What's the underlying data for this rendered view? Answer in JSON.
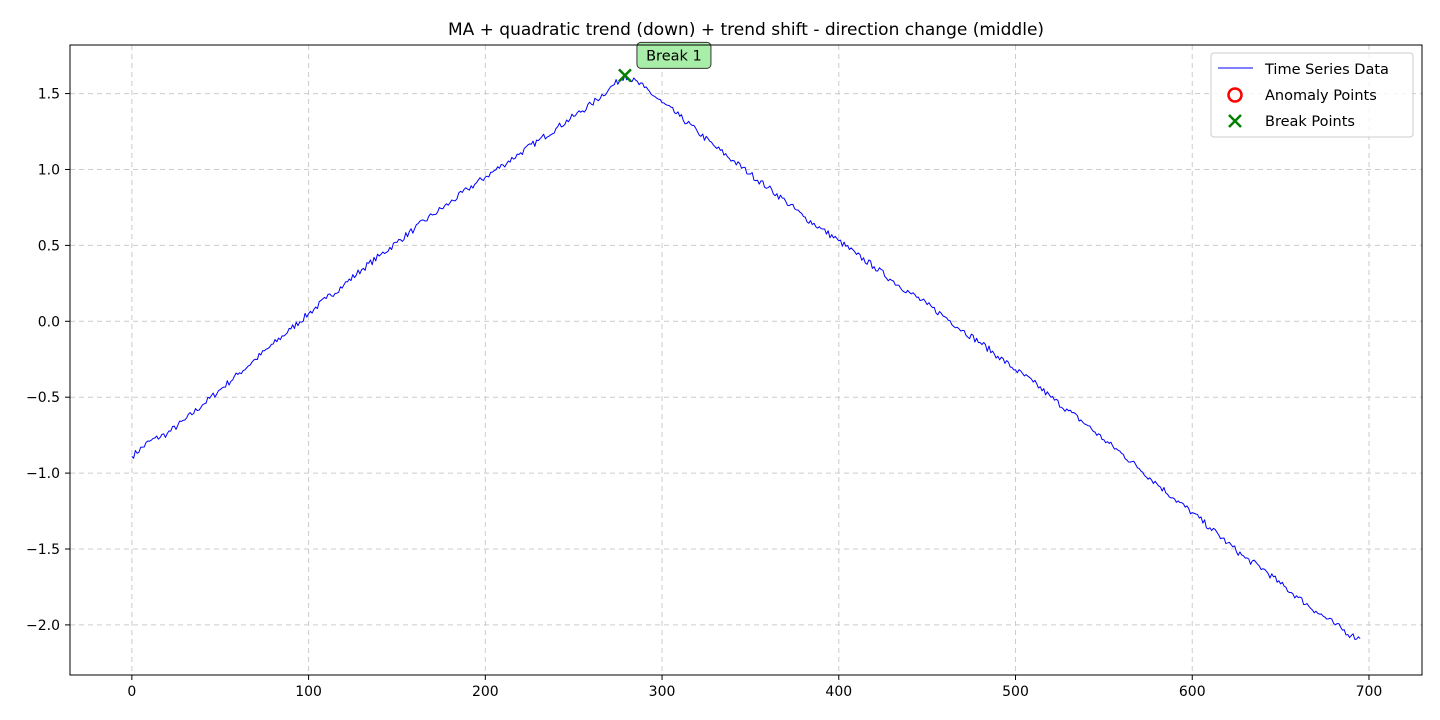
{
  "chart_data": {
    "type": "line",
    "title": "MA + quadratic trend (down) + trend shift - direction change (middle)",
    "xlabel": "",
    "ylabel": "",
    "xlim": [
      -35,
      730
    ],
    "ylim": [
      -2.33,
      1.82
    ],
    "x_ticks": [
      0,
      100,
      200,
      300,
      400,
      500,
      600,
      700
    ],
    "y_ticks": [
      1.5,
      1.0,
      0.5,
      0.0,
      -0.5,
      -1.0,
      -1.5,
      -2.0
    ],
    "y_tick_labels": [
      "1.5",
      "1.0",
      "0.5",
      "0.0",
      "−0.5",
      "−1.0",
      "−1.5",
      "−2.0"
    ],
    "grid": true,
    "legend_position": "top-right",
    "series": [
      {
        "name": "Time Series Data",
        "color": "#0000ff",
        "x": [
          0,
          10,
          20,
          30,
          40,
          50,
          60,
          70,
          80,
          90,
          100,
          110,
          120,
          130,
          140,
          150,
          160,
          170,
          180,
          190,
          200,
          210,
          220,
          230,
          240,
          250,
          260,
          270,
          279,
          290,
          300,
          310,
          320,
          330,
          340,
          350,
          360,
          370,
          380,
          390,
          400,
          410,
          420,
          430,
          440,
          450,
          460,
          470,
          480,
          490,
          500,
          510,
          520,
          530,
          540,
          550,
          560,
          570,
          580,
          590,
          600,
          610,
          620,
          630,
          640,
          650,
          660,
          670,
          680,
          690,
          695
        ],
        "y": [
          -0.89,
          -0.79,
          -0.74,
          -0.65,
          -0.55,
          -0.45,
          -0.35,
          -0.25,
          -0.15,
          -0.05,
          0.05,
          0.15,
          0.24,
          0.34,
          0.43,
          0.52,
          0.61,
          0.7,
          0.78,
          0.87,
          0.95,
          1.03,
          1.11,
          1.19,
          1.27,
          1.35,
          1.43,
          1.53,
          1.62,
          1.54,
          1.44,
          1.35,
          1.25,
          1.15,
          1.06,
          0.97,
          0.88,
          0.79,
          0.69,
          0.61,
          0.53,
          0.44,
          0.36,
          0.27,
          0.19,
          0.11,
          0.03,
          -0.06,
          -0.14,
          -0.23,
          -0.32,
          -0.4,
          -0.5,
          -0.59,
          -0.68,
          -0.78,
          -0.87,
          -0.97,
          -1.07,
          -1.17,
          -1.26,
          -1.36,
          -1.46,
          -1.56,
          -1.63,
          -1.73,
          -1.82,
          -1.91,
          -1.99,
          -2.07,
          -2.09
        ]
      }
    ],
    "anomaly_points": {
      "name": "Anomaly Points",
      "color": "#ff0000",
      "points": []
    },
    "break_points": {
      "name": "Break Points",
      "color": "#008000",
      "points": [
        {
          "x": 279,
          "y": 1.62,
          "label": "Break 1"
        }
      ]
    }
  }
}
